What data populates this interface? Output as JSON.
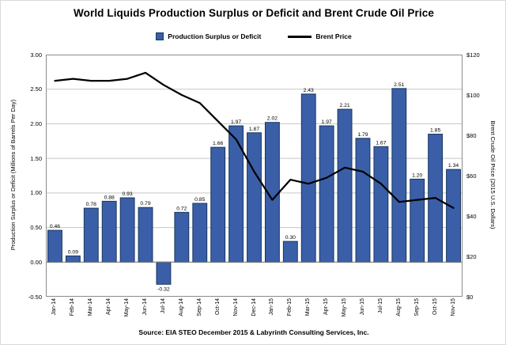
{
  "title": "World Liquids Production Surplus or Deficit and Brent Crude Oil Price",
  "legend": {
    "bars_label": "Production Surplus or Deficit",
    "line_label": "Brent Price"
  },
  "axes": {
    "left_label": "Production Surplus or Deficit (Millions of Barrels Per Day)",
    "right_label": "Brent Crude Oil Price (2015 U.S. Dollars)",
    "left_ticks": [
      "3.00",
      "2.50",
      "2.00",
      "1.50",
      "1.00",
      "0.50",
      "0.00",
      "-0.50"
    ],
    "right_ticks": [
      "$120",
      "$100",
      "$80",
      "$60",
      "$40",
      "$20",
      "$0"
    ]
  },
  "source": "Source:  EIA STEO December 2015 & Labyrinth Consulting Services, Inc.",
  "colors": {
    "bar_fill": "#3A5FA8",
    "bar_stroke": "#17375E",
    "line": "#000000",
    "grid": "#c6c6c6",
    "axis": "#8c8c8c",
    "zero_line": "#7a7a7a"
  },
  "chart_data": {
    "type": "bar",
    "subtype": "bar-with-line-overlay",
    "title": "World Liquids Production Surplus or Deficit and Brent Crude Oil Price",
    "categories": [
      "Jan-14",
      "Feb-14",
      "Mar-14",
      "Apr-14",
      "May-14",
      "Jun-14",
      "Jul-14",
      "Aug-14",
      "Sep-14",
      "Oct-14",
      "Nov-14",
      "Dec-14",
      "Jan-15",
      "Feb-15",
      "Mar-15",
      "Apr-15",
      "May-15",
      "Jun-15",
      "Jul-15",
      "Aug-15",
      "Sep-15",
      "Oct-15",
      "Nov-15"
    ],
    "series": [
      {
        "name": "Production Surplus or Deficit",
        "type": "bar",
        "axis": "left",
        "values": [
          0.46,
          0.09,
          0.78,
          0.88,
          0.93,
          0.79,
          -0.32,
          0.72,
          0.85,
          1.66,
          1.97,
          1.87,
          2.02,
          0.3,
          2.43,
          1.97,
          2.21,
          1.79,
          1.67,
          2.51,
          1.2,
          1.85,
          1.34
        ]
      },
      {
        "name": "Brent Price",
        "type": "line",
        "axis": "right",
        "values": [
          107,
          108,
          107,
          107,
          108,
          111,
          105,
          100,
          96,
          87,
          78,
          62,
          48,
          58,
          56,
          59,
          64,
          62,
          56,
          47,
          48,
          49,
          44
        ]
      }
    ],
    "left_ylabel": "Production Surplus or Deficit (Millions of Barrels Per Day)",
    "right_ylabel": "Brent Crude Oil Price (2015 U.S. Dollars)",
    "left_ylim": [
      -0.5,
      3.0
    ],
    "left_tick_step": 0.5,
    "right_ylim": [
      0,
      120
    ],
    "right_tick_step": 20,
    "grid": true,
    "legend_position": "top",
    "data_labels": true
  }
}
